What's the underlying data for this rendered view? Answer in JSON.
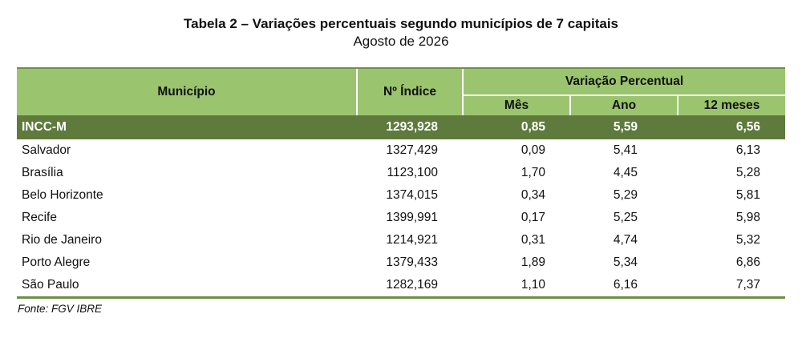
{
  "title": "Tabela 2 – Variações percentuais segundo municípios de 7 capitais",
  "subtitle": "Agosto de 2026",
  "header": {
    "municipio": "Município",
    "indice": "Nº Índice",
    "variacao": "Variação Percentual",
    "mes": "Mês",
    "ano": "Ano",
    "doze_meses": "12 meses"
  },
  "total": {
    "municipio": "INCC-M",
    "indice": "1293,928",
    "mes": "0,85",
    "ano": "5,59",
    "doze_meses": "6,56"
  },
  "rows": [
    {
      "municipio": "Salvador",
      "indice": "1327,429",
      "mes": "0,09",
      "ano": "5,41",
      "doze_meses": "6,13"
    },
    {
      "municipio": "Brasília",
      "indice": "1123,100",
      "mes": "1,70",
      "ano": "4,45",
      "doze_meses": "5,28"
    },
    {
      "municipio": "Belo Horizonte",
      "indice": "1374,015",
      "mes": "0,34",
      "ano": "5,29",
      "doze_meses": "5,81"
    },
    {
      "municipio": "Recife",
      "indice": "1399,991",
      "mes": "0,17",
      "ano": "5,25",
      "doze_meses": "5,98"
    },
    {
      "municipio": "Rio de Janeiro",
      "indice": "1214,921",
      "mes": "0,31",
      "ano": "4,74",
      "doze_meses": "5,32"
    },
    {
      "municipio": "Porto Alegre",
      "indice": "1379,433",
      "mes": "1,89",
      "ano": "5,34",
      "doze_meses": "6,86"
    },
    {
      "municipio": "São Paulo",
      "indice": "1282,169",
      "mes": "1,10",
      "ano": "6,16",
      "doze_meses": "7,37"
    }
  ],
  "source": "Fonte: FGV IBRE",
  "colors": {
    "header_green": "#9bc46e",
    "total_green": "#5e7a3c",
    "rule_green": "#6d8f43"
  }
}
